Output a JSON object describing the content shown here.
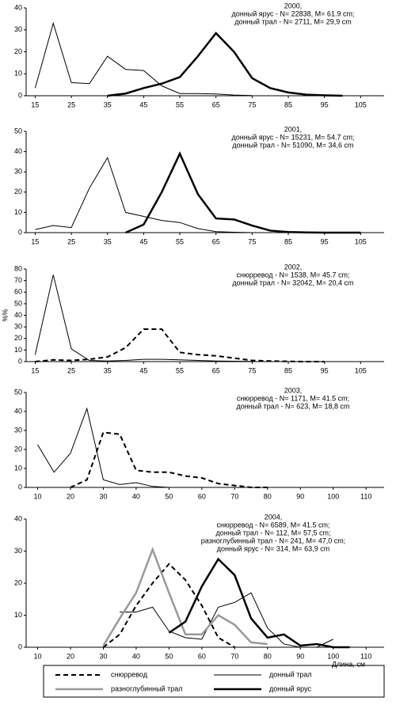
{
  "chart_data": [
    {
      "type": "line",
      "annotations": [
        "2000,",
        "донный ярус - N= 22838, M= 61.9 cm;",
        "донный трал - N= 2711, M= 29,9 cm"
      ],
      "x": [
        15,
        20,
        25,
        30,
        35,
        40,
        45,
        50,
        55,
        60,
        65,
        70,
        75,
        80,
        85,
        90,
        95,
        100,
        105
      ],
      "series": [
        {
          "color": "#000000",
          "line_width": 1,
          "dashed": false,
          "values": [
            3.5,
            33,
            6,
            5.5,
            18,
            12,
            11.5,
            4.5,
            1,
            1,
            0.8,
            0.3,
            0.1,
            null,
            null,
            null,
            null,
            null,
            null
          ]
        },
        {
          "color": "#000000",
          "line_width": 2.5,
          "dashed": false,
          "values": [
            null,
            null,
            null,
            null,
            0,
            1,
            3.5,
            5.5,
            8.5,
            18,
            28.5,
            20,
            8,
            3.5,
            1.5,
            0.5,
            0.2,
            0,
            null
          ]
        }
      ],
      "xlim": [
        12.5,
        111.5
      ],
      "xticks": [
        15,
        25,
        35,
        45,
        55,
        65,
        75,
        85,
        95,
        105
      ],
      "ylim": [
        0,
        40
      ],
      "yticks": [
        0,
        10,
        20,
        30,
        40
      ]
    },
    {
      "type": "line",
      "annotations": [
        "2001,",
        "донный ярус - N= 15231, M= 54.7 cm;",
        "донный трал - N= 51090, M= 34,6 cm"
      ],
      "x": [
        15,
        20,
        25,
        30,
        35,
        40,
        45,
        50,
        55,
        60,
        65,
        70,
        75,
        80,
        85,
        90,
        95,
        100,
        105
      ],
      "series": [
        {
          "color": "#000000",
          "line_width": 1,
          "dashed": false,
          "values": [
            1.5,
            3.5,
            2.5,
            22,
            37,
            10,
            8,
            6,
            5,
            2,
            0.5,
            0.2,
            0,
            null,
            null,
            null,
            null,
            null,
            null
          ]
        },
        {
          "color": "#000000",
          "line_width": 2.5,
          "dashed": false,
          "values": [
            null,
            null,
            null,
            null,
            null,
            0,
            4,
            20,
            39,
            19,
            7,
            6.5,
            3.5,
            1,
            0.3,
            0.1,
            0,
            0,
            0
          ]
        }
      ],
      "xlim": [
        12.5,
        111.5
      ],
      "xticks": [
        15,
        25,
        35,
        45,
        55,
        65,
        75,
        85,
        95,
        105
      ],
      "ylim": [
        0,
        50
      ],
      "yticks": [
        0,
        10,
        20,
        30,
        40,
        50
      ]
    },
    {
      "type": "line",
      "annotations": [
        "2002,",
        "снюрревод - N= 1538, M= 45.7 cm;",
        "донный трал - N= 32042, M= 20,4 cm"
      ],
      "ylabel": "%%",
      "x": [
        15,
        20,
        25,
        30,
        35,
        40,
        45,
        50,
        55,
        60,
        65,
        70,
        75,
        80,
        85,
        90,
        95,
        100,
        105
      ],
      "series": [
        {
          "color": "#000000",
          "line_width": 1,
          "dashed": false,
          "values": [
            6,
            75,
            11,
            1,
            0.5,
            1,
            2,
            2,
            1.5,
            1,
            0.5,
            0.3,
            0.2,
            null,
            null,
            null,
            null,
            null,
            null
          ]
        },
        {
          "color": "#000000",
          "line_width": 2,
          "dashed": true,
          "values": [
            0,
            1.5,
            1,
            2,
            4,
            12,
            28,
            28,
            8,
            6,
            5,
            3,
            1,
            0.5,
            0.2,
            0,
            0,
            null,
            null
          ]
        }
      ],
      "xlim": [
        12.5,
        111.5
      ],
      "xticks": [
        15,
        25,
        35,
        45,
        55,
        65,
        75,
        85,
        95,
        105
      ],
      "ylim": [
        0,
        80
      ],
      "yticks": [
        0,
        10,
        20,
        30,
        40,
        50,
        60,
        70,
        80
      ]
    },
    {
      "type": "line",
      "annotations": [
        "2003,",
        "снюрревод - N= 1171, M= 41.5 cm;",
        "донный трал - N= 623, M= 18,8 cm"
      ],
      "x": [
        10,
        15,
        20,
        25,
        30,
        35,
        40,
        45,
        50,
        55,
        60,
        65,
        70,
        75,
        80,
        85,
        90,
        95,
        100,
        105,
        110
      ],
      "series": [
        {
          "color": "#000000",
          "line_width": 1,
          "dashed": false,
          "values": [
            22.5,
            8,
            18,
            41.5,
            4,
            1.5,
            2.5,
            0.5,
            0,
            0,
            null,
            null,
            null,
            null,
            null,
            null,
            null,
            null,
            null,
            null,
            null
          ]
        },
        {
          "color": "#000000",
          "line_width": 2,
          "dashed": true,
          "values": [
            null,
            null,
            0,
            4,
            29,
            28,
            9,
            8,
            8,
            6,
            5,
            2,
            1,
            0,
            0,
            null,
            null,
            null,
            null,
            null,
            null
          ]
        }
      ],
      "xlim": [
        6.5,
        115.5
      ],
      "xticks": [
        10,
        20,
        30,
        40,
        50,
        60,
        70,
        80,
        90,
        100,
        110
      ],
      "ylim": [
        0,
        50
      ],
      "yticks": [
        0,
        10,
        20,
        30,
        40,
        50
      ]
    },
    {
      "type": "line",
      "annotations": [
        "2004,",
        "снюрревод - N= 6589, M= 41.5 cm;",
        "донный трал - N= 112, M= 57,5 cm;",
        "разноглубинный трал - N= 241, M= 47,0 cm;",
        "донный ярус - N= 314, M= 63,9 cm"
      ],
      "xlabel": "Длина, см",
      "x": [
        30,
        35,
        40,
        45,
        50,
        55,
        60,
        65,
        70,
        75,
        80,
        85,
        90,
        95,
        100,
        105
      ],
      "series": [
        {
          "name": "снюрревод",
          "color": "#000000",
          "line_width": 2,
          "dashed": true,
          "values": [
            0,
            4,
            13,
            20,
            26,
            21,
            13,
            3,
            0,
            null,
            null,
            null,
            null,
            null,
            null,
            null
          ]
        },
        {
          "name": "донный трал",
          "color": "#000000",
          "line_width": 1,
          "dashed": false,
          "values": [
            null,
            11,
            11,
            12.5,
            5,
            3,
            2.5,
            12.5,
            14,
            17,
            6,
            1,
            0,
            0,
            2.5,
            null
          ]
        },
        {
          "name": "разноглубинный трал",
          "color": "#999999",
          "line_width": 2.5,
          "dashed": false,
          "values": [
            0.5,
            9,
            17,
            30.5,
            17,
            4,
            4,
            10,
            7,
            1.5,
            1,
            null,
            null,
            null,
            null,
            null
          ]
        },
        {
          "name": "донный ярус",
          "color": "#000000",
          "line_width": 2.5,
          "dashed": false,
          "values": [
            null,
            null,
            null,
            null,
            4.5,
            8,
            19,
            27.5,
            22.5,
            9,
            3,
            4,
            0.5,
            1,
            0,
            0
          ]
        }
      ],
      "xlim": [
        6.5,
        115.5
      ],
      "xticks": [
        10,
        20,
        30,
        40,
        50,
        60,
        70,
        80,
        90,
        100,
        110
      ],
      "ylim": [
        0,
        40
      ],
      "yticks": [
        0,
        10,
        20,
        30,
        40
      ]
    }
  ]
}
